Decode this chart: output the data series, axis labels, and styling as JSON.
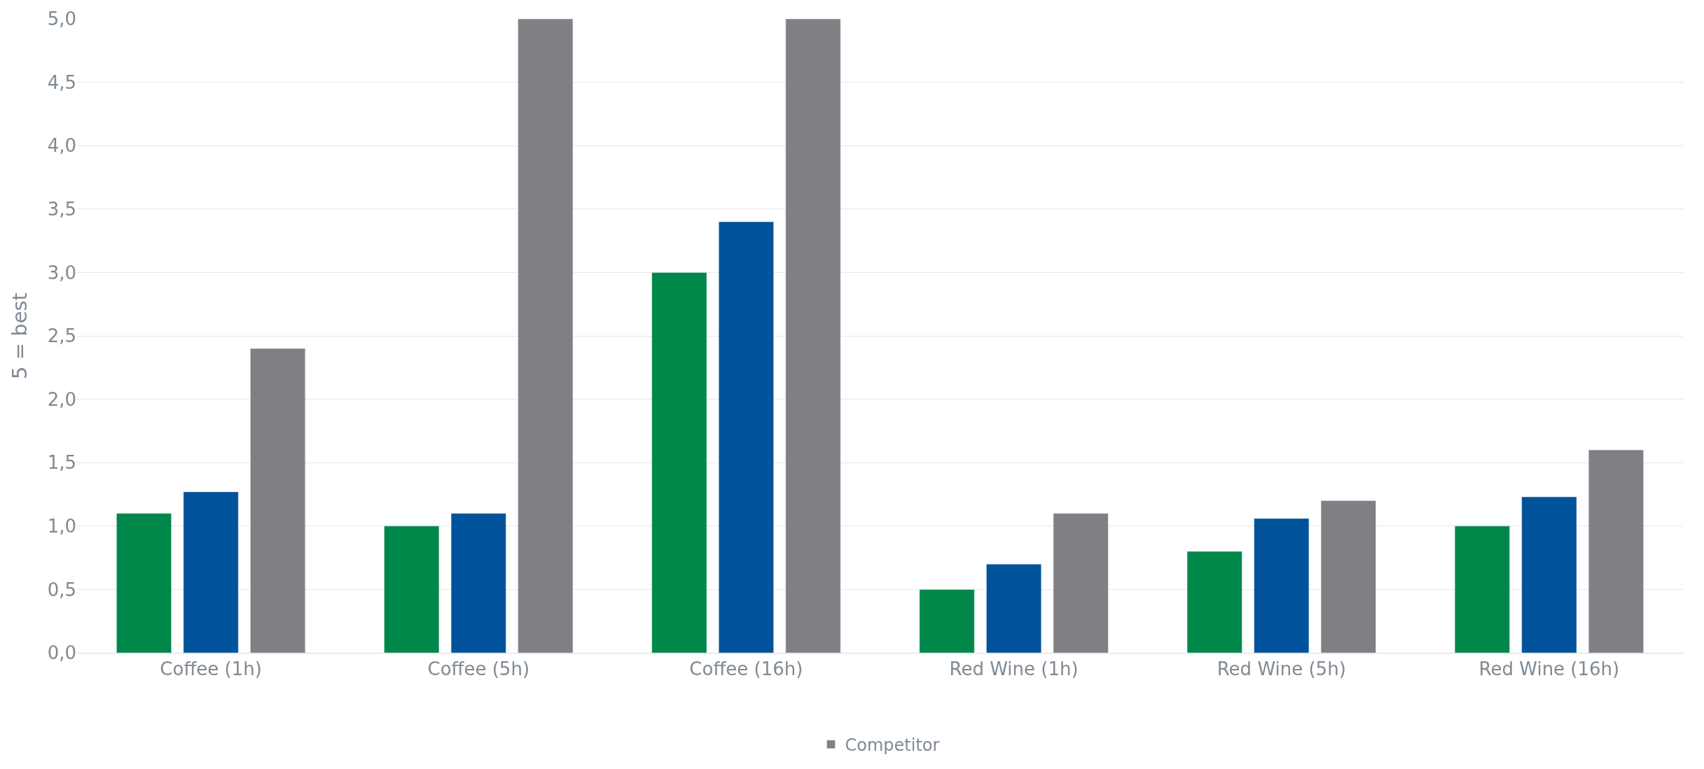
{
  "chart_data": {
    "type": "bar",
    "ylabel": "5 = best",
    "categories": [
      "Coffee (1h)",
      "Coffee (5h)",
      "Coffee (16h)",
      "Red Wine (1h)",
      "Red Wine (5h)",
      "Red Wine (16h)"
    ],
    "series": [
      {
        "color": "#00884a",
        "values": [
          1.1,
          1.0,
          3.0,
          0.5,
          0.8,
          1.0
        ]
      },
      {
        "color": "#00529b",
        "values": [
          1.27,
          1.1,
          3.4,
          0.7,
          1.06,
          1.23
        ]
      },
      {
        "name": "Competitor",
        "color": "#7f8084",
        "values": [
          2.4,
          5.0,
          5.0,
          1.1,
          1.2,
          1.6
        ]
      }
    ],
    "ylim": [
      0,
      5
    ],
    "yticks": [
      {
        "value": 0,
        "label": "0,0"
      },
      {
        "value": 0.5,
        "label": "0,5"
      },
      {
        "value": 1,
        "label": "1,0"
      },
      {
        "value": 1.5,
        "label": "1,5"
      },
      {
        "value": 2,
        "label": "2,0"
      },
      {
        "value": 2.5,
        "label": "2,5"
      },
      {
        "value": 3,
        "label": "3,0"
      },
      {
        "value": 3.5,
        "label": "3,5"
      },
      {
        "value": 4,
        "label": "4,0"
      },
      {
        "value": 4.5,
        "label": "4,5"
      },
      {
        "value": 5,
        "label": "5,0"
      }
    ],
    "grid": "y",
    "legend": "bottom"
  }
}
